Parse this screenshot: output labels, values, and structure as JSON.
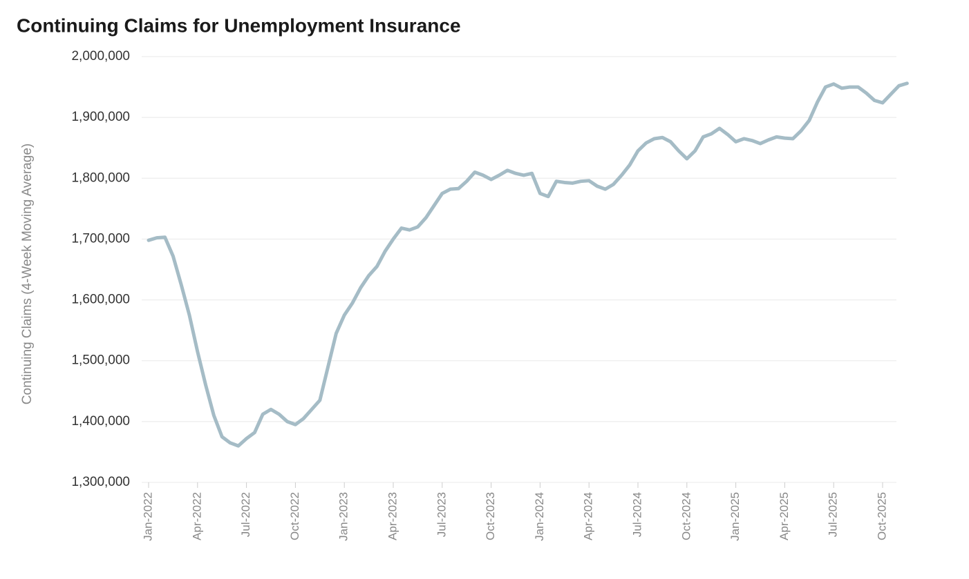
{
  "chart_data": {
    "type": "line",
    "title": "Continuing Claims for Unemployment Insurance",
    "y_label": "Continuing Claims (4-Week Moving Average)",
    "categories": [
      "Jan-2022",
      null,
      null,
      null,
      null,
      null,
      "Apr-2022",
      null,
      null,
      null,
      null,
      null,
      "Jul-2022",
      null,
      null,
      null,
      null,
      null,
      "Oct-2022",
      null,
      null,
      null,
      null,
      null,
      "Jan-2023",
      null,
      null,
      null,
      null,
      null,
      "Apr-2023",
      null,
      null,
      null,
      null,
      null,
      "Jul-2023",
      null,
      null,
      null,
      null,
      null,
      "Oct-2023",
      null,
      null,
      null,
      null,
      null,
      "Jan-2024",
      null,
      null,
      null,
      null,
      null,
      "Apr-2024",
      null,
      null,
      null,
      null,
      null,
      "Jul-2024",
      null,
      null,
      null,
      null,
      null,
      "Oct-2024",
      null,
      null,
      null,
      null,
      null,
      "Jan-2025",
      null,
      null,
      null,
      null,
      null,
      "Apr-2025",
      null,
      null,
      null,
      null,
      null,
      "Jul-2025",
      null,
      null,
      null,
      null,
      null,
      "Oct-2025",
      null,
      null,
      null
    ],
    "series": [
      {
        "name": "Continuing Claims",
        "color": "#a5bcc6",
        "values": [
          1698000,
          1702000,
          1703000,
          1672000,
          1625000,
          1575000,
          1515000,
          1460000,
          1410000,
          1375000,
          1365000,
          1360000,
          1372000,
          1382000,
          1412000,
          1420000,
          1412000,
          1400000,
          1395000,
          1405000,
          1420000,
          1435000,
          1490000,
          1545000,
          1575000,
          1595000,
          1620000,
          1640000,
          1655000,
          1680000,
          1700000,
          1718000,
          1715000,
          1720000,
          1735000,
          1755000,
          1775000,
          1782000,
          1783000,
          1795000,
          1810000,
          1805000,
          1798000,
          1805000,
          1813000,
          1808000,
          1805000,
          1808000,
          1775000,
          1770000,
          1795000,
          1793000,
          1792000,
          1795000,
          1796000,
          1787000,
          1782000,
          1790000,
          1805000,
          1822000,
          1845000,
          1858000,
          1865000,
          1867000,
          1860000,
          1845000,
          1832000,
          1845000,
          1868000,
          1873000,
          1882000,
          1872000,
          1860000,
          1865000,
          1862000,
          1857000,
          1863000,
          1868000,
          1866000,
          1865000,
          1878000,
          1895000,
          1925000,
          1950000,
          1955000,
          1948000,
          1950000,
          1950000,
          1940000,
          1928000,
          1924000,
          1938000,
          1952000,
          1956000
        ]
      }
    ],
    "ylim": [
      1300000,
      2000000
    ],
    "yticks": [
      {
        "value": 1300000,
        "label": "1,300,000"
      },
      {
        "value": 1400000,
        "label": "1,400,000"
      },
      {
        "value": 1500000,
        "label": "1,500,000"
      },
      {
        "value": 1600000,
        "label": "1,600,000"
      },
      {
        "value": 1700000,
        "label": "1,700,000"
      },
      {
        "value": 1800000,
        "label": "1,800,000"
      },
      {
        "value": 1900000,
        "label": "1,900,000"
      },
      {
        "value": 2000000,
        "label": "2,000,000"
      }
    ],
    "grid": true
  }
}
